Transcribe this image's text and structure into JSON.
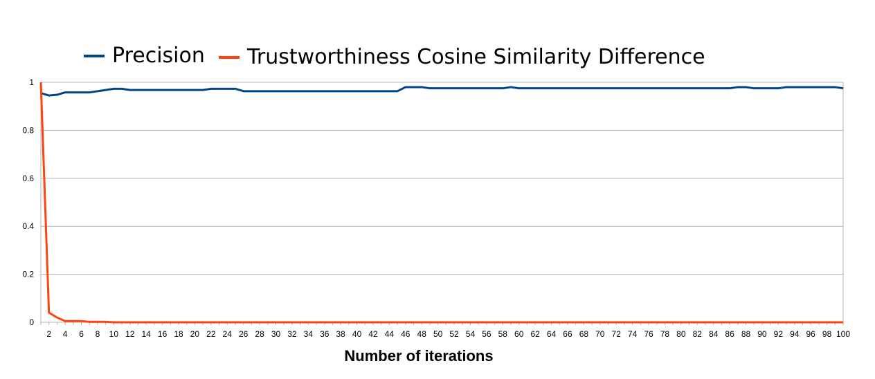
{
  "chart_data": {
    "type": "line",
    "title": "",
    "xlabel": "Number of iterations",
    "ylabel": "",
    "ylim": [
      0,
      1
    ],
    "yticks": [
      "0",
      "0.2",
      "0.4",
      "0.6",
      "0.8",
      "1"
    ],
    "ytick_values": [
      0,
      0.2,
      0.4,
      0.6,
      0.8,
      1
    ],
    "x": [
      1,
      2,
      3,
      4,
      5,
      6,
      7,
      8,
      9,
      10,
      11,
      12,
      13,
      14,
      15,
      16,
      17,
      18,
      19,
      20,
      21,
      22,
      23,
      24,
      25,
      26,
      27,
      28,
      29,
      30,
      31,
      32,
      33,
      34,
      35,
      36,
      37,
      38,
      39,
      40,
      41,
      42,
      43,
      44,
      45,
      46,
      47,
      48,
      49,
      50,
      51,
      52,
      53,
      54,
      55,
      56,
      57,
      58,
      59,
      60,
      61,
      62,
      63,
      64,
      65,
      66,
      67,
      68,
      69,
      70,
      71,
      72,
      73,
      74,
      75,
      76,
      77,
      78,
      79,
      80,
      81,
      82,
      83,
      84,
      85,
      86,
      87,
      88,
      89,
      90,
      91,
      92,
      93,
      94,
      95,
      96,
      97,
      98,
      99,
      100
    ],
    "xticks": [
      2,
      4,
      6,
      8,
      10,
      12,
      14,
      16,
      18,
      20,
      22,
      24,
      26,
      28,
      30,
      32,
      34,
      36,
      38,
      40,
      42,
      44,
      46,
      48,
      50,
      52,
      54,
      56,
      58,
      60,
      62,
      64,
      66,
      68,
      70,
      72,
      74,
      76,
      78,
      80,
      82,
      84,
      86,
      88,
      90,
      92,
      94,
      96,
      98,
      100
    ],
    "grid": true,
    "legend_position": "top",
    "series": [
      {
        "name": "Precision",
        "color": "#004586",
        "values": [
          0.955,
          0.945,
          0.948,
          0.958,
          0.958,
          0.958,
          0.958,
          0.963,
          0.968,
          0.973,
          0.973,
          0.968,
          0.968,
          0.968,
          0.968,
          0.968,
          0.968,
          0.968,
          0.968,
          0.968,
          0.968,
          0.973,
          0.973,
          0.973,
          0.973,
          0.963,
          0.963,
          0.963,
          0.963,
          0.963,
          0.963,
          0.963,
          0.963,
          0.963,
          0.963,
          0.963,
          0.963,
          0.963,
          0.963,
          0.963,
          0.963,
          0.963,
          0.963,
          0.963,
          0.963,
          0.98,
          0.98,
          0.98,
          0.975,
          0.975,
          0.975,
          0.975,
          0.975,
          0.975,
          0.975,
          0.975,
          0.975,
          0.975,
          0.98,
          0.975,
          0.975,
          0.975,
          0.975,
          0.975,
          0.975,
          0.975,
          0.975,
          0.975,
          0.975,
          0.975,
          0.975,
          0.975,
          0.975,
          0.975,
          0.975,
          0.975,
          0.975,
          0.975,
          0.975,
          0.975,
          0.975,
          0.975,
          0.975,
          0.975,
          0.975,
          0.975,
          0.98,
          0.98,
          0.975,
          0.975,
          0.975,
          0.975,
          0.98,
          0.98,
          0.98,
          0.98,
          0.98,
          0.98,
          0.98,
          0.975
        ]
      },
      {
        "name": "Trustworthiness Cosine Similarity Difference",
        "color": "#ff420e",
        "values": [
          1.0,
          0.04,
          0.02,
          0.005,
          0.005,
          0.005,
          0.002,
          0.002,
          0.002,
          0,
          0,
          0,
          0,
          0,
          0,
          0,
          0,
          0,
          0,
          0,
          0,
          0,
          0,
          0,
          0,
          0,
          0,
          0,
          0,
          0,
          0,
          0,
          0,
          0,
          0,
          0,
          0,
          0,
          0,
          0,
          0,
          0,
          0,
          0,
          0,
          0,
          0,
          0,
          0,
          0,
          0,
          0,
          0,
          0,
          0,
          0,
          0,
          0,
          0,
          0,
          0,
          0,
          0,
          0,
          0,
          0,
          0,
          0,
          0,
          0,
          0,
          0,
          0,
          0,
          0,
          0,
          0,
          0,
          0,
          0,
          0,
          0,
          0,
          0,
          0,
          0,
          0,
          0,
          0,
          0,
          0,
          0,
          0,
          0,
          0,
          0,
          0,
          0,
          0,
          0
        ]
      }
    ]
  }
}
